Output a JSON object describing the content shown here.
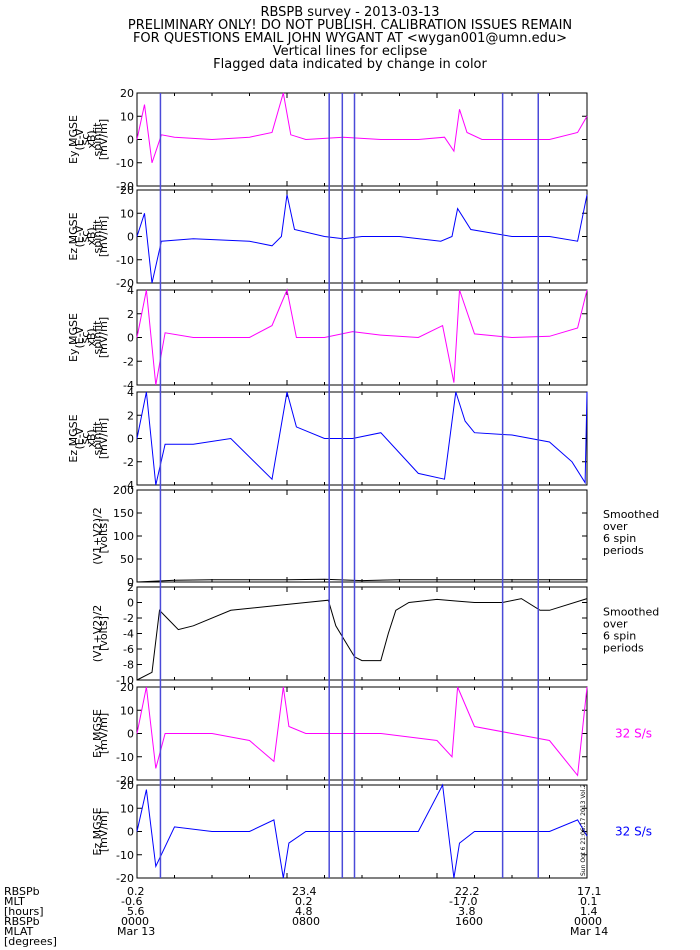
{
  "header": {
    "line1": "RBSPB survey - 2013-03-13",
    "line2": "PRELIMINARY ONLY! DO NOT PUBLISH. CALIBRATION ISSUES REMAIN",
    "line3": "FOR QUESTIONS EMAIL JOHN WYGANT AT <wygan001@umn.edu>",
    "line4": "Vertical lines for eclipse",
    "line5": "Flagged data indicated by change in color"
  },
  "colors": {
    "magenta": "#ff00ff",
    "blue": "#0000ff",
    "eclipse": "#4a4ad8",
    "black": "#000000"
  },
  "eclipse_lines_hours": [
    1.25,
    10.25,
    10.95,
    11.6,
    19.5,
    21.4
  ],
  "side_note": "Smoothed\nover\n6 spin\nperiods",
  "stamp": "Sun Oct  6 21:06:17 2013 Vol.2",
  "chart_data": [
    {
      "type": "line",
      "ylabel": [
        "Ey MGSE",
        "(E-V",
        "sc",
        "xB)",
        "spinfit",
        "[mV/m]"
      ],
      "ylim": [
        -20,
        20
      ],
      "yticks": [
        "-20",
        "-10",
        "0",
        "10",
        "20"
      ],
      "color": "magenta",
      "x_hours": [
        0,
        0.4,
        0.8,
        1.3,
        2,
        4,
        6,
        7.2,
        7.8,
        8.2,
        9,
        11,
        13,
        15,
        16.4,
        16.9,
        17.2,
        17.6,
        18.4,
        20,
        22,
        23.5,
        24
      ],
      "y": [
        0,
        15,
        -10,
        2,
        1,
        0,
        1,
        3,
        20,
        2,
        0,
        1,
        0,
        0,
        1,
        -5,
        13,
        3,
        0,
        0,
        0,
        3,
        10
      ]
    },
    {
      "type": "line",
      "ylabel": [
        "Ez MGSE",
        "(E-V",
        "sc",
        "xB)",
        "spinfit",
        "[mV/m]"
      ],
      "ylim": [
        -20,
        20
      ],
      "yticks": [
        "-20",
        "-10",
        "0",
        "10",
        "20"
      ],
      "color": "blue",
      "x_hours": [
        0,
        0.4,
        0.8,
        1.3,
        3,
        6,
        7.2,
        7.7,
        8,
        8.4,
        10,
        11,
        12,
        14,
        16.2,
        16.8,
        17.1,
        17.8,
        20,
        22,
        23.5,
        24
      ],
      "y": [
        0,
        10,
        -20,
        -2,
        -1,
        -2,
        -4,
        0,
        18,
        3,
        0,
        -1,
        0,
        0,
        -2,
        0,
        12,
        3,
        0,
        0,
        -2,
        18
      ]
    },
    {
      "type": "line",
      "ylabel": [
        "Ey MGSE",
        "(E-V",
        "sc",
        "xB)",
        "spinfit",
        "[mV/m]"
      ],
      "ylim": [
        -4,
        4
      ],
      "yticks": [
        "-4",
        "-2",
        "0",
        "2",
        "4"
      ],
      "color": "magenta",
      "x_hours": [
        0,
        0.5,
        1,
        1.5,
        3,
        6,
        7.2,
        8,
        8.5,
        10,
        11.5,
        13,
        15,
        16.3,
        16.9,
        17.2,
        18,
        20,
        22,
        23.5,
        24
      ],
      "y": [
        0,
        4,
        -4,
        0.4,
        0,
        0,
        1,
        4,
        0,
        0,
        0.5,
        0.2,
        0,
        1,
        -3.8,
        4,
        0.3,
        0,
        0.1,
        0.8,
        4
      ]
    },
    {
      "type": "line",
      "ylabel": [
        "Ez MGSE",
        "(E-V",
        "sc",
        "xB)",
        "spinfit",
        "[mV/m]"
      ],
      "ylim": [
        -4,
        4
      ],
      "yticks": [
        "-4",
        "-2",
        "0",
        "2",
        "4"
      ],
      "color": "blue",
      "x_hours": [
        0,
        0.5,
        1,
        1.5,
        3,
        5,
        7.2,
        8,
        8.5,
        10,
        11.5,
        13,
        15,
        16.4,
        17,
        17.5,
        18,
        20,
        22,
        23.2,
        23.9,
        24
      ],
      "y": [
        0,
        4,
        -4,
        -0.5,
        -0.5,
        0,
        -3.5,
        4,
        1,
        0,
        0,
        0.5,
        -3,
        -3.5,
        4,
        1.5,
        0.5,
        0.3,
        -0.3,
        -2,
        -3.8,
        4
      ]
    },
    {
      "type": "line",
      "ylabel": [
        "(V1+V2)/2",
        "[volts]"
      ],
      "ylim": [
        0,
        200
      ],
      "yticks": [
        "0",
        "50",
        "100",
        "150",
        "200"
      ],
      "color": "black",
      "x_hours": [
        0,
        2,
        4,
        6,
        8,
        10,
        12,
        14,
        16,
        18,
        20,
        22,
        24
      ],
      "y": [
        0,
        4,
        5,
        5,
        5,
        6,
        3,
        5,
        5,
        5,
        5,
        5,
        5
      ]
    },
    {
      "type": "line",
      "ylabel": [
        "(V1+V2)/2",
        "[volts]"
      ],
      "ylim": [
        -10,
        2
      ],
      "yticks": [
        "-10",
        "-8",
        "-6",
        "-4",
        "-2",
        "0",
        "2"
      ],
      "color": "black",
      "x_hours": [
        0,
        0.8,
        1.2,
        1.6,
        2.2,
        3,
        5,
        7,
        9,
        10.2,
        10.6,
        11.6,
        12,
        13,
        13.4,
        13.8,
        14.5,
        16,
        17,
        18,
        19.5,
        20.5,
        21.5,
        22,
        24
      ],
      "y": [
        -10,
        -9,
        -1,
        -2,
        -3.5,
        -3,
        -1,
        -0.5,
        0,
        0.3,
        -3,
        -7,
        -7.5,
        -7.5,
        -4,
        -1,
        0,
        0.4,
        0.2,
        0,
        0,
        0.5,
        -1,
        -1,
        0.5
      ]
    },
    {
      "type": "line",
      "ylabel": [
        "Ey MGSE",
        "[mV/m]"
      ],
      "ylim": [
        -20,
        20
      ],
      "yticks": [
        "-20",
        "-10",
        "0",
        "10",
        "20"
      ],
      "color": "magenta",
      "rate_label": "32 S/s",
      "x_hours": [
        0,
        0.5,
        1,
        1.5,
        4,
        6,
        7.3,
        7.8,
        8.1,
        9,
        11,
        13,
        16,
        16.8,
        17.1,
        18,
        20,
        22,
        23.5,
        24
      ],
      "y": [
        0,
        20,
        -15,
        0,
        0,
        -3,
        -12,
        20,
        3,
        0,
        0,
        0,
        -3,
        -10,
        20,
        3,
        0,
        -3,
        -18,
        20
      ]
    },
    {
      "type": "line",
      "ylabel": [
        "Ez MGSE",
        "[mV/m]"
      ],
      "ylim": [
        -20,
        20
      ],
      "yticks": [
        "-20",
        "-10",
        "0",
        "10",
        "20"
      ],
      "color": "blue",
      "rate_label": "32 S/s",
      "x_hours": [
        0,
        0.5,
        1,
        2,
        4,
        6,
        7.3,
        7.8,
        8.1,
        9,
        11,
        13,
        15,
        16.3,
        16.9,
        17.2,
        18,
        20,
        22,
        23.5,
        24
      ],
      "y": [
        0,
        18,
        -15,
        2,
        0,
        0,
        5,
        -20,
        -5,
        0,
        0,
        0,
        0,
        20,
        -20,
        -5,
        0,
        0,
        0,
        5,
        -2
      ]
    }
  ],
  "x_axis": {
    "row_labels": [
      "RBSPb",
      "MLT",
      "[hours]",
      "RBSPb",
      "MLAT",
      "[degrees]"
    ],
    "columns": [
      {
        "values": [
          "0.2",
          "-0.6",
          "5.6",
          "0000",
          "Mar 13"
        ]
      },
      {
        "values": [
          "23.4",
          "0.2",
          "4.8",
          "0800",
          ""
        ]
      },
      {
        "values": [
          "22.2",
          "-17.0",
          "3.8",
          "1600",
          ""
        ]
      },
      {
        "values": [
          "17.1",
          "0.1",
          "1.4",
          "0000",
          "Mar 14"
        ]
      }
    ]
  }
}
